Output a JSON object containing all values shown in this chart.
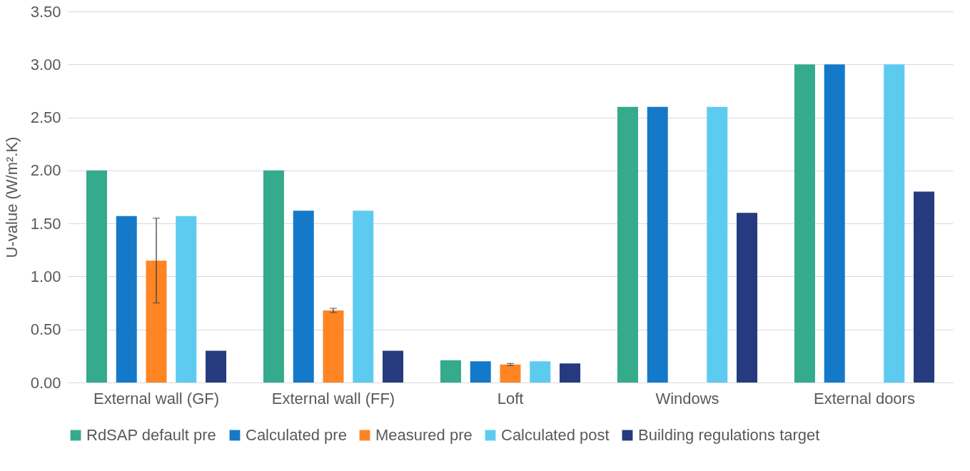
{
  "chart_data": {
    "type": "bar",
    "ylabel": "U-value (W/m².K)",
    "categories": [
      "External wall (GF)",
      "External wall (FF)",
      "Loft",
      "Windows",
      "External doors"
    ],
    "series": [
      {
        "name": "RdSAP default pre",
        "color": "#35aa8c",
        "values": [
          2.0,
          2.0,
          0.21,
          2.6,
          3.0
        ]
      },
      {
        "name": "Calculated pre",
        "color": "#1479c9",
        "values": [
          1.57,
          1.62,
          0.2,
          2.6,
          3.0
        ]
      },
      {
        "name": "Measured pre",
        "color": "#ff8424",
        "values": [
          1.15,
          0.68,
          0.17,
          null,
          null
        ],
        "errors": [
          [
            0.75,
            1.55
          ],
          [
            0.66,
            0.7
          ],
          [
            0.16,
            0.18
          ],
          null,
          null
        ]
      },
      {
        "name": "Calculated post",
        "color": "#5dcbf0",
        "values": [
          1.57,
          1.62,
          0.2,
          2.6,
          3.0
        ]
      },
      {
        "name": "Building regulations target",
        "color": "#253a7f",
        "values": [
          0.3,
          0.3,
          0.18,
          1.6,
          1.8
        ]
      }
    ],
    "ylim": [
      0,
      3.5
    ],
    "yticks": [
      {
        "value": 0,
        "label": "0.00"
      },
      {
        "value": 0.5,
        "label": "0.50"
      },
      {
        "value": 1,
        "label": "1.00"
      },
      {
        "value": 1.5,
        "label": "1.50"
      },
      {
        "value": 2,
        "label": "2.00"
      },
      {
        "value": 2.5,
        "label": "2.50"
      },
      {
        "value": 3,
        "label": "3.00"
      },
      {
        "value": 3.5,
        "label": "3.50"
      }
    ],
    "grid": "y",
    "legend": "bottom"
  }
}
